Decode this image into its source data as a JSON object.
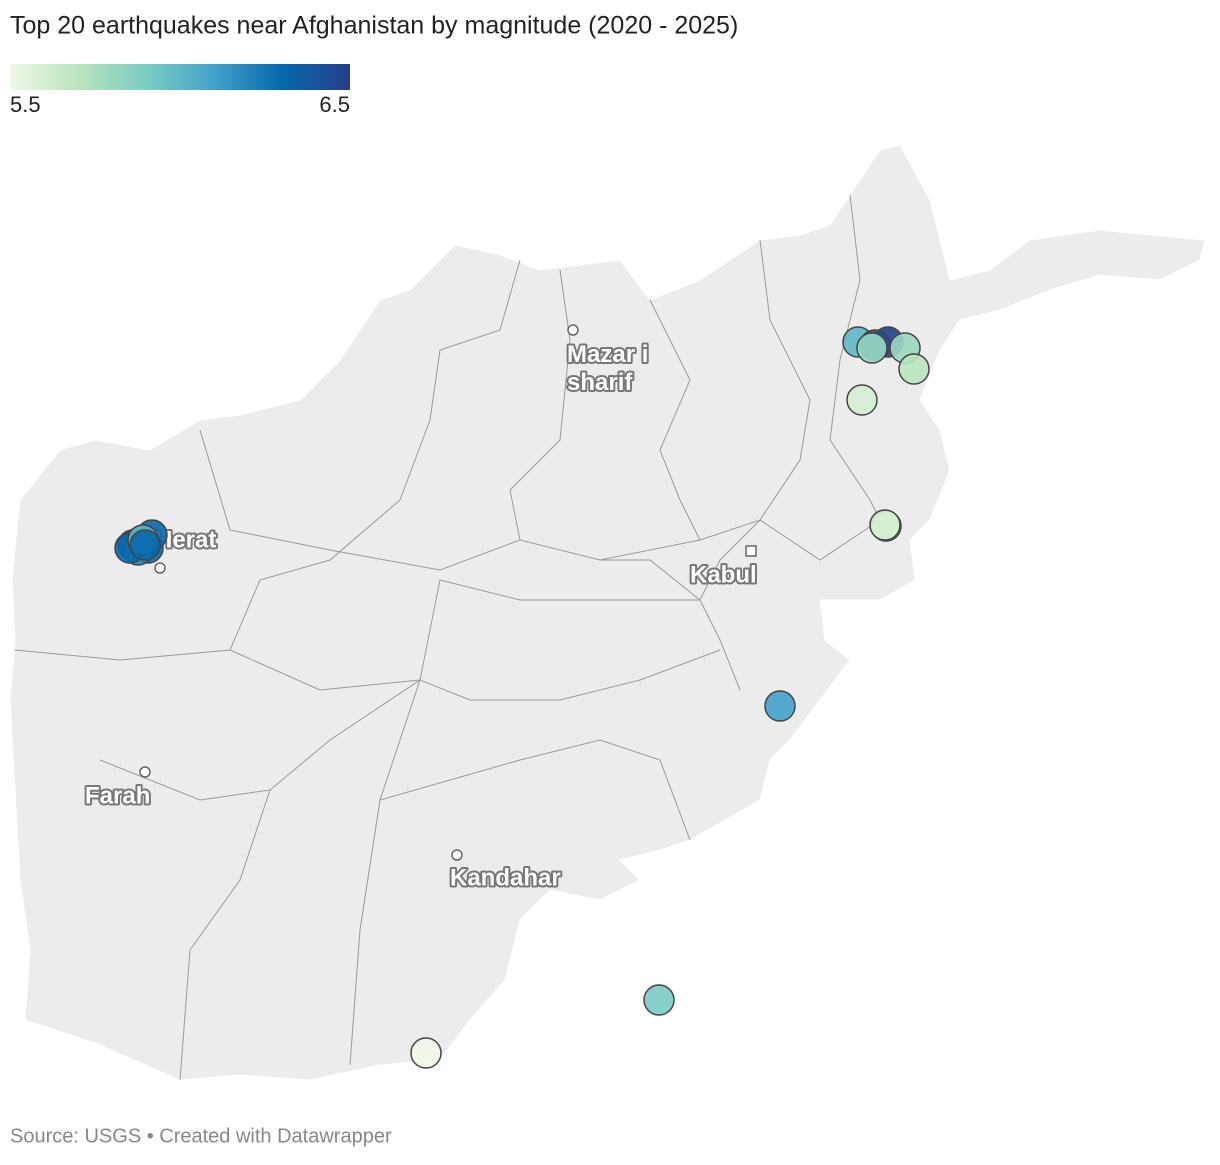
{
  "chart_data": {
    "type": "map",
    "title": "Top 20 earthquakes near Afghanistan by magnitude (2020 - 2025)",
    "colorbar": {
      "min": 5.5,
      "max": 6.5,
      "colors": [
        "#f0f9e8",
        "#bae4bc",
        "#7bccc4",
        "#43a2ca",
        "#0868ac",
        "#253f8a"
      ]
    },
    "cities": [
      "Mazar i sharif",
      "Herat",
      "Kabul",
      "Farah",
      "Kandahar"
    ],
    "values": [
      6.3,
      6.3,
      6.3,
      6.3,
      6.2,
      6.3,
      6.0,
      6.3,
      6.0,
      6.5,
      6.4,
      5.8,
      5.8,
      5.7,
      5.6,
      5.7,
      5.6,
      6.1,
      5.9,
      5.5
    ],
    "source": "Source: USGS • Created with Datawrapper"
  }
}
